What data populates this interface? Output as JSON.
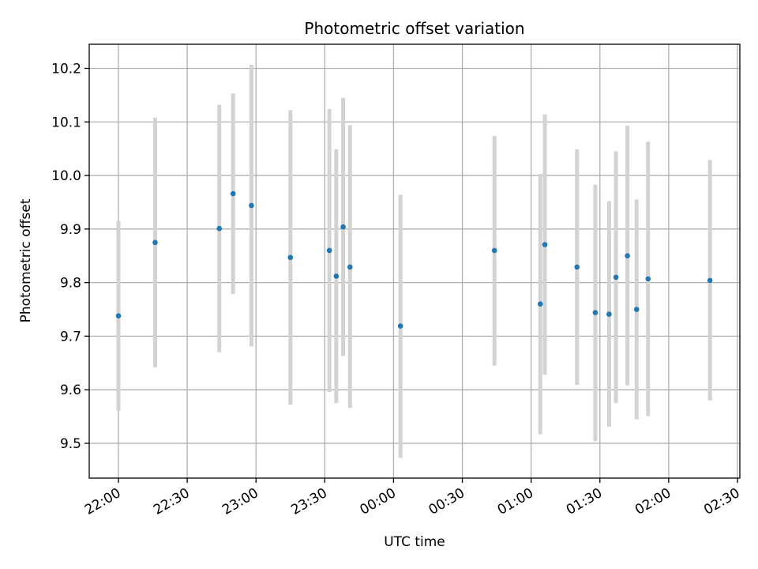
{
  "chart_data": {
    "type": "scatter",
    "title": "Photometric offset variation",
    "xlabel": "UTC time",
    "ylabel": "Photometric offset",
    "x_axis_type": "time",
    "x_range": [
      "22:00",
      "02:30"
    ],
    "x_ticks": [
      "22:00",
      "22:30",
      "23:00",
      "23:30",
      "00:00",
      "00:30",
      "01:00",
      "01:30",
      "02:00",
      "02:30"
    ],
    "ylim": [
      9.435,
      10.245
    ],
    "y_ticks": [
      9.5,
      9.6,
      9.7,
      9.8,
      9.9,
      10.0,
      10.1,
      10.2
    ],
    "y_tick_labels": [
      "9.5",
      "9.6",
      "9.7",
      "9.8",
      "9.9",
      "10.0",
      "10.1",
      "10.2"
    ],
    "grid": true,
    "colors": {
      "points": "#1f77b4",
      "error_bars": "#d3d3d3"
    },
    "series": [
      {
        "points": [
          {
            "x": "22:00",
            "y": 9.738,
            "yerr": [
              9.561,
              9.915
            ]
          },
          {
            "x": "22:16",
            "y": 9.875,
            "yerr": [
              9.642,
              10.108
            ]
          },
          {
            "x": "22:44",
            "y": 9.901,
            "yerr": [
              9.67,
              10.132
            ]
          },
          {
            "x": "22:50",
            "y": 9.966,
            "yerr": [
              9.779,
              10.153
            ]
          },
          {
            "x": "22:58",
            "y": 9.944,
            "yerr": [
              9.681,
              10.207
            ]
          },
          {
            "x": "23:15",
            "y": 9.847,
            "yerr": [
              9.572,
              10.122
            ]
          },
          {
            "x": "23:32",
            "y": 9.86,
            "yerr": [
              9.596,
              10.124
            ]
          },
          {
            "x": "23:35",
            "y": 9.812,
            "yerr": [
              9.575,
              10.049
            ]
          },
          {
            "x": "23:38",
            "y": 9.904,
            "yerr": [
              9.663,
              10.145
            ]
          },
          {
            "x": "23:41",
            "y": 9.829,
            "yerr": [
              9.566,
              10.094
            ]
          },
          {
            "x": "00:03",
            "y": 9.719,
            "yerr": [
              9.473,
              9.964
            ]
          },
          {
            "x": "00:44",
            "y": 9.86,
            "yerr": [
              9.645,
              10.074
            ]
          },
          {
            "x": "01:04",
            "y": 9.76,
            "yerr": [
              9.517,
              10.003
            ]
          },
          {
            "x": "01:06",
            "y": 9.871,
            "yerr": [
              9.628,
              10.114
            ]
          },
          {
            "x": "01:20",
            "y": 9.829,
            "yerr": [
              9.609,
              10.049
            ]
          },
          {
            "x": "01:28",
            "y": 9.744,
            "yerr": [
              9.504,
              9.983
            ]
          },
          {
            "x": "01:34",
            "y": 9.741,
            "yerr": [
              9.531,
              9.952
            ]
          },
          {
            "x": "01:37",
            "y": 9.81,
            "yerr": [
              9.575,
              10.045
            ]
          },
          {
            "x": "01:42",
            "y": 9.85,
            "yerr": [
              9.608,
              10.093
            ]
          },
          {
            "x": "01:46",
            "y": 9.75,
            "yerr": [
              9.545,
              9.955
            ]
          },
          {
            "x": "01:51",
            "y": 9.807,
            "yerr": [
              9.551,
              10.063
            ]
          },
          {
            "x": "02:18",
            "y": 9.804,
            "yerr": [
              9.58,
              10.029
            ]
          }
        ]
      }
    ]
  }
}
